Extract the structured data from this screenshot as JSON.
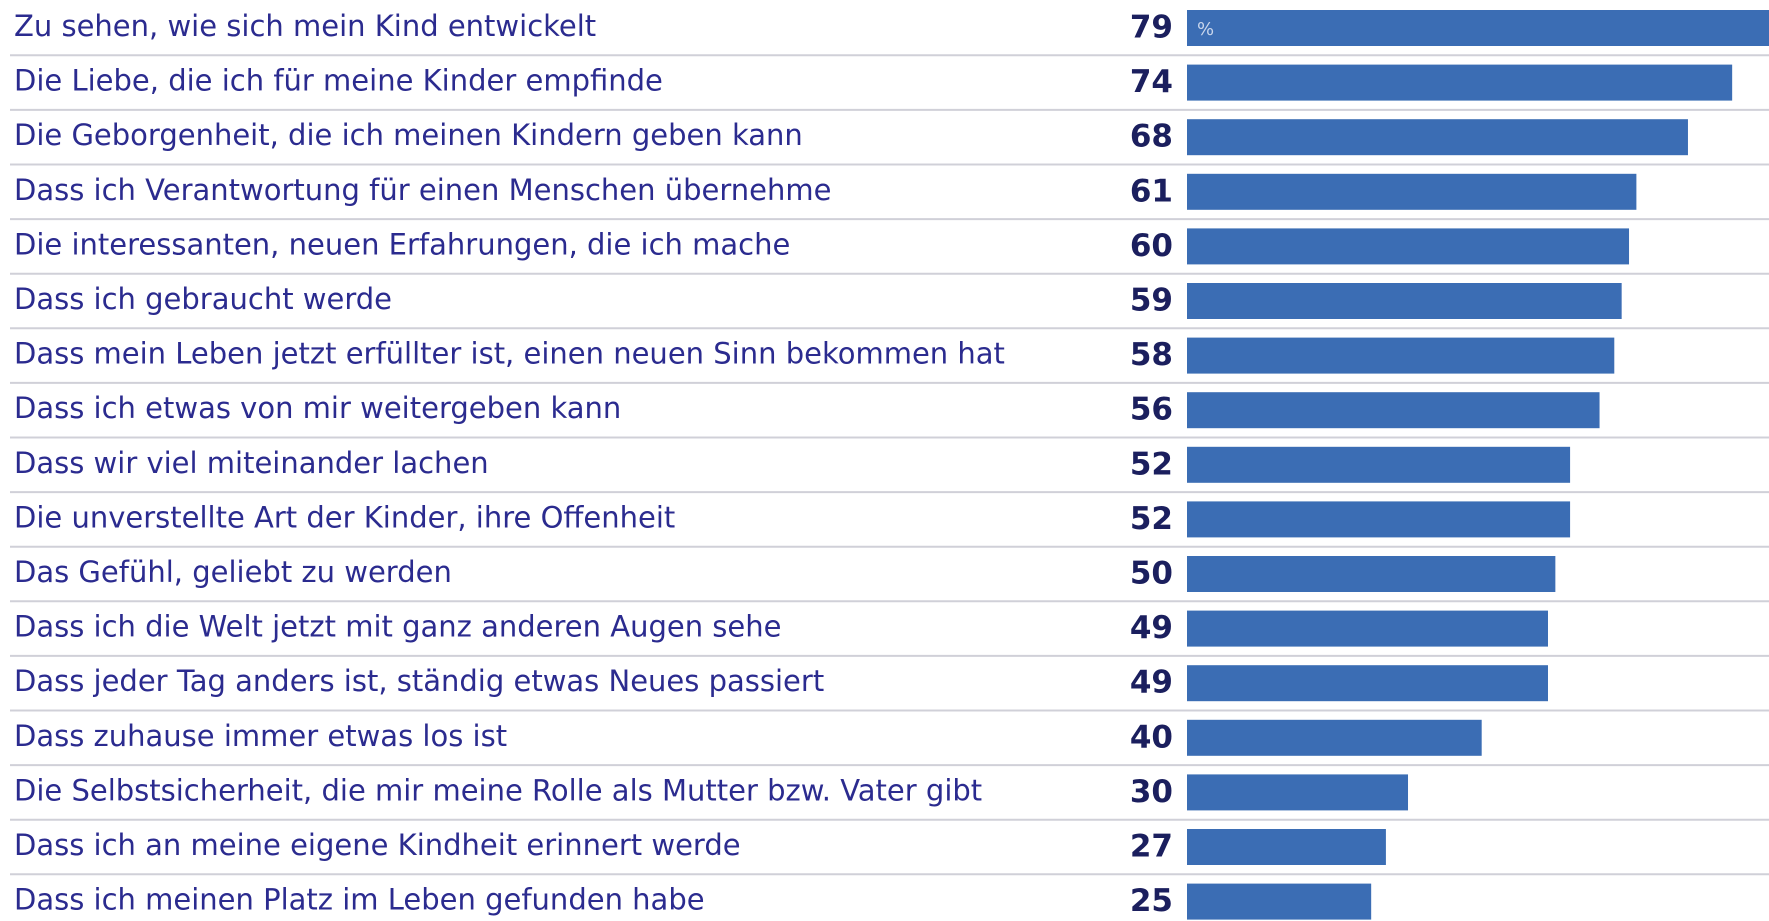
{
  "chart_data": {
    "type": "bar",
    "orientation": "horizontal",
    "unit": "%",
    "categories": [
      "Zu sehen, wie sich mein Kind entwickelt",
      "Die Liebe, die ich für meine Kinder empfinde",
      "Die Geborgenheit, die ich meinen Kindern geben kann",
      "Dass ich Verantwortung für einen Menschen übernehme",
      "Die interessanten, neuen Erfahrungen, die ich mache",
      "Dass ich gebraucht werde",
      "Dass mein Leben jetzt erfüllter ist, einen neuen Sinn bekommen hat",
      "Dass ich etwas von mir weitergeben kann",
      "Dass wir viel miteinander lachen",
      "Die unverstellte Art der Kinder, ihre Offenheit",
      "Das Gefühl, geliebt zu werden",
      "Dass ich die Welt jetzt mit ganz anderen Augen sehe",
      "Dass jeder Tag anders ist, ständig etwas Neues passiert",
      "Dass zuhause immer etwas los ist",
      "Die Selbstsicherheit, die mir meine Rolle als Mutter bzw. Vater gibt",
      "Dass ich an meine eigene Kindheit erinnert werde",
      "Dass ich meinen Platz im Leben gefunden habe"
    ],
    "values": [
      79,
      74,
      68,
      61,
      60,
      59,
      58,
      56,
      52,
      52,
      50,
      49,
      49,
      40,
      30,
      27,
      25
    ],
    "color": "#3b6db4",
    "xlim": [
      0,
      79
    ]
  }
}
